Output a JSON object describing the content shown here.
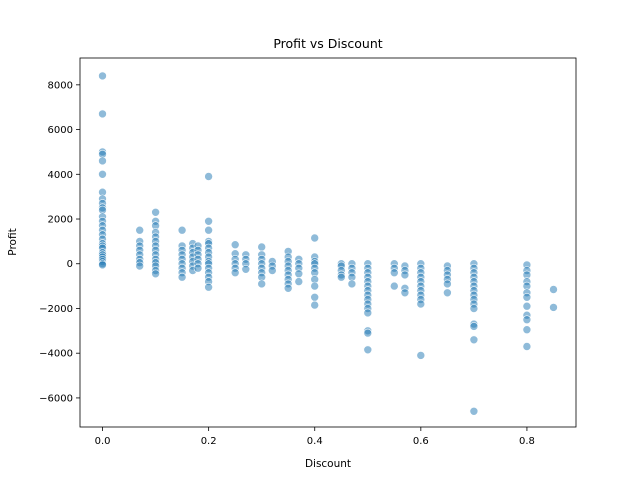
{
  "chart_data": {
    "type": "scatter",
    "title": "Profit vs Discount",
    "xlabel": "Discount",
    "ylabel": "Profit",
    "xlim": [
      -0.0425,
      0.8925
    ],
    "ylim": [
      -7300,
      9200
    ],
    "xticks": [
      0.0,
      0.2,
      0.4,
      0.6,
      0.8
    ],
    "xtick_labels": [
      "0.0",
      "0.2",
      "0.4",
      "0.6",
      "0.8"
    ],
    "yticks": [
      -6000,
      -4000,
      -2000,
      0,
      2000,
      4000,
      6000,
      8000
    ],
    "ytick_labels": [
      "−6000",
      "−4000",
      "−2000",
      "0",
      "2000",
      "4000",
      "6000",
      "8000"
    ],
    "grid": false,
    "legend": "none",
    "series": [
      {
        "color": "#1f77b4",
        "points": [
          [
            0.0,
            8400
          ],
          [
            0.0,
            6700
          ],
          [
            0.0,
            5000
          ],
          [
            0.0,
            4900
          ],
          [
            0.0,
            4600
          ],
          [
            0.0,
            4000
          ],
          [
            0.0,
            3200
          ],
          [
            0.0,
            2900
          ],
          [
            0.0,
            2700
          ],
          [
            0.0,
            2500
          ],
          [
            0.0,
            2400
          ],
          [
            0.0,
            2100
          ],
          [
            0.0,
            1900
          ],
          [
            0.0,
            1700
          ],
          [
            0.0,
            1500
          ],
          [
            0.0,
            1300
          ],
          [
            0.0,
            1100
          ],
          [
            0.0,
            900
          ],
          [
            0.0,
            800
          ],
          [
            0.0,
            700
          ],
          [
            0.0,
            500
          ],
          [
            0.0,
            400
          ],
          [
            0.0,
            300
          ],
          [
            0.0,
            200
          ],
          [
            0.0,
            100
          ],
          [
            0.0,
            0
          ],
          [
            0.0,
            -50
          ],
          [
            0.07,
            1500
          ],
          [
            0.07,
            1000
          ],
          [
            0.07,
            800
          ],
          [
            0.07,
            600
          ],
          [
            0.07,
            400
          ],
          [
            0.07,
            200
          ],
          [
            0.07,
            50
          ],
          [
            0.07,
            -100
          ],
          [
            0.1,
            2300
          ],
          [
            0.1,
            1900
          ],
          [
            0.1,
            1700
          ],
          [
            0.1,
            1400
          ],
          [
            0.1,
            1200
          ],
          [
            0.1,
            1000
          ],
          [
            0.1,
            800
          ],
          [
            0.1,
            600
          ],
          [
            0.1,
            400
          ],
          [
            0.1,
            200
          ],
          [
            0.1,
            50
          ],
          [
            0.1,
            -100
          ],
          [
            0.1,
            -300
          ],
          [
            0.1,
            -450
          ],
          [
            0.15,
            1500
          ],
          [
            0.15,
            800
          ],
          [
            0.15,
            600
          ],
          [
            0.15,
            400
          ],
          [
            0.15,
            200
          ],
          [
            0.15,
            0
          ],
          [
            0.15,
            -200
          ],
          [
            0.15,
            -400
          ],
          [
            0.15,
            -600
          ],
          [
            0.17,
            900
          ],
          [
            0.17,
            700
          ],
          [
            0.17,
            500
          ],
          [
            0.17,
            300
          ],
          [
            0.17,
            100
          ],
          [
            0.17,
            -100
          ],
          [
            0.17,
            -300
          ],
          [
            0.18,
            800
          ],
          [
            0.18,
            600
          ],
          [
            0.18,
            400
          ],
          [
            0.18,
            200
          ],
          [
            0.18,
            0
          ],
          [
            0.18,
            -200
          ],
          [
            0.2,
            3900
          ],
          [
            0.2,
            1900
          ],
          [
            0.2,
            1500
          ],
          [
            0.2,
            1000
          ],
          [
            0.2,
            900
          ],
          [
            0.2,
            700
          ],
          [
            0.2,
            500
          ],
          [
            0.2,
            300
          ],
          [
            0.2,
            100
          ],
          [
            0.2,
            0
          ],
          [
            0.2,
            -200
          ],
          [
            0.2,
            -400
          ],
          [
            0.2,
            -600
          ],
          [
            0.2,
            -800
          ],
          [
            0.2,
            -1050
          ],
          [
            0.25,
            850
          ],
          [
            0.25,
            450
          ],
          [
            0.25,
            200
          ],
          [
            0.25,
            0
          ],
          [
            0.25,
            -200
          ],
          [
            0.25,
            -400
          ],
          [
            0.27,
            400
          ],
          [
            0.27,
            200
          ],
          [
            0.27,
            0
          ],
          [
            0.27,
            -250
          ],
          [
            0.3,
            750
          ],
          [
            0.3,
            400
          ],
          [
            0.3,
            200
          ],
          [
            0.3,
            0
          ],
          [
            0.3,
            -200
          ],
          [
            0.3,
            -400
          ],
          [
            0.3,
            -600
          ],
          [
            0.3,
            -900
          ],
          [
            0.32,
            100
          ],
          [
            0.32,
            -100
          ],
          [
            0.32,
            -300
          ],
          [
            0.35,
            550
          ],
          [
            0.35,
            300
          ],
          [
            0.35,
            100
          ],
          [
            0.35,
            -100
          ],
          [
            0.35,
            -300
          ],
          [
            0.35,
            -500
          ],
          [
            0.35,
            -700
          ],
          [
            0.35,
            -900
          ],
          [
            0.35,
            -1100
          ],
          [
            0.37,
            200
          ],
          [
            0.37,
            0
          ],
          [
            0.37,
            -200
          ],
          [
            0.37,
            -450
          ],
          [
            0.37,
            -800
          ],
          [
            0.4,
            1150
          ],
          [
            0.4,
            300
          ],
          [
            0.4,
            100
          ],
          [
            0.4,
            0
          ],
          [
            0.4,
            -200
          ],
          [
            0.4,
            -400
          ],
          [
            0.4,
            -700
          ],
          [
            0.4,
            -1000
          ],
          [
            0.4,
            -1500
          ],
          [
            0.4,
            -1850
          ],
          [
            0.45,
            0
          ],
          [
            0.45,
            -100
          ],
          [
            0.45,
            -300
          ],
          [
            0.45,
            -500
          ],
          [
            0.45,
            -600
          ],
          [
            0.47,
            0
          ],
          [
            0.47,
            -200
          ],
          [
            0.47,
            -400
          ],
          [
            0.47,
            -600
          ],
          [
            0.47,
            -900
          ],
          [
            0.5,
            0
          ],
          [
            0.5,
            -200
          ],
          [
            0.5,
            -400
          ],
          [
            0.5,
            -600
          ],
          [
            0.5,
            -800
          ],
          [
            0.5,
            -1000
          ],
          [
            0.5,
            -1200
          ],
          [
            0.5,
            -1400
          ],
          [
            0.5,
            -1600
          ],
          [
            0.5,
            -1800
          ],
          [
            0.5,
            -2000
          ],
          [
            0.5,
            -2200
          ],
          [
            0.5,
            -3000
          ],
          [
            0.5,
            -3100
          ],
          [
            0.5,
            -3850
          ],
          [
            0.55,
            0
          ],
          [
            0.55,
            -200
          ],
          [
            0.55,
            -400
          ],
          [
            0.55,
            -1000
          ],
          [
            0.57,
            -100
          ],
          [
            0.57,
            -300
          ],
          [
            0.57,
            -500
          ],
          [
            0.57,
            -1100
          ],
          [
            0.57,
            -1300
          ],
          [
            0.6,
            0
          ],
          [
            0.6,
            -200
          ],
          [
            0.6,
            -400
          ],
          [
            0.6,
            -600
          ],
          [
            0.6,
            -800
          ],
          [
            0.6,
            -1000
          ],
          [
            0.6,
            -1200
          ],
          [
            0.6,
            -1400
          ],
          [
            0.6,
            -1600
          ],
          [
            0.6,
            -1800
          ],
          [
            0.6,
            -4100
          ],
          [
            0.65,
            -100
          ],
          [
            0.65,
            -300
          ],
          [
            0.65,
            -500
          ],
          [
            0.65,
            -700
          ],
          [
            0.65,
            -900
          ],
          [
            0.65,
            -1300
          ],
          [
            0.7,
            0
          ],
          [
            0.7,
            -200
          ],
          [
            0.7,
            -400
          ],
          [
            0.7,
            -600
          ],
          [
            0.7,
            -800
          ],
          [
            0.7,
            -1000
          ],
          [
            0.7,
            -1200
          ],
          [
            0.7,
            -1400
          ],
          [
            0.7,
            -1600
          ],
          [
            0.7,
            -1800
          ],
          [
            0.7,
            -2000
          ],
          [
            0.7,
            -2700
          ],
          [
            0.7,
            -2800
          ],
          [
            0.7,
            -3400
          ],
          [
            0.7,
            -6600
          ],
          [
            0.8,
            -50
          ],
          [
            0.8,
            -300
          ],
          [
            0.8,
            -500
          ],
          [
            0.8,
            -800
          ],
          [
            0.8,
            -1000
          ],
          [
            0.8,
            -1300
          ],
          [
            0.8,
            -1500
          ],
          [
            0.8,
            -1900
          ],
          [
            0.8,
            -2300
          ],
          [
            0.8,
            -2500
          ],
          [
            0.8,
            -2950
          ],
          [
            0.8,
            -3700
          ],
          [
            0.85,
            -1150
          ],
          [
            0.85,
            -1950
          ]
        ]
      }
    ]
  }
}
